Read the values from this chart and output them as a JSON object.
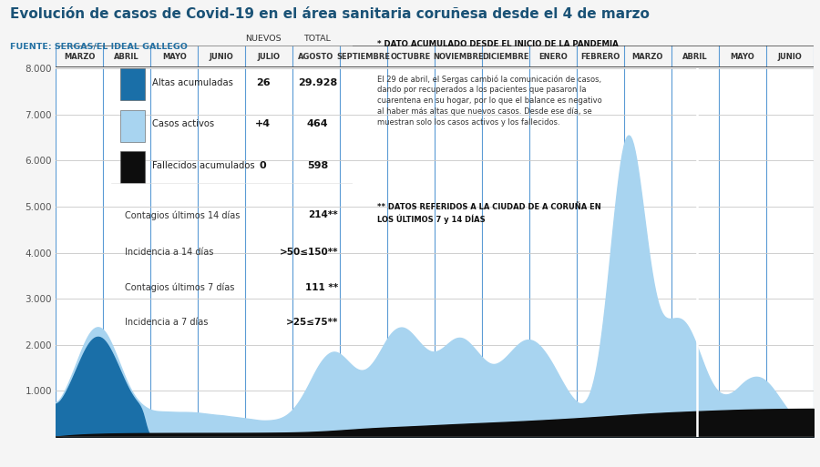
{
  "title": "Evolución de casos de Covid-19 en el área sanitaria coruñesa desde el 4 de marzo",
  "source": "FUENTE: SERGAS/EL IDEAL GALLEGO",
  "title_color": "#1a5276",
  "source_color": "#2471a3",
  "bg_color": "#f5f5f5",
  "plot_bg_color": "#ffffff",
  "grid_color": "#c8c8c8",
  "months": [
    "MARZO",
    "ABRIL",
    "MAYO",
    "JUNIO",
    "JULIO",
    "AGOSTO",
    "SEPTIEMBRE",
    "OCTUBRE",
    "NOVIEMBRE",
    "DICIEMBRE",
    "ENERO",
    "FEBRERO",
    "MARZO",
    "ABRIL",
    "MAYO",
    "JUNIO"
  ],
  "ylim": [
    0,
    8000
  ],
  "yticks": [
    1000,
    2000,
    3000,
    4000,
    5000,
    6000,
    7000,
    8000
  ],
  "color_altas": "#1a6fa8",
  "color_activos": "#a8d4f0",
  "color_fallecidos": "#0d0d0d",
  "legend_items": [
    {
      "label": "Altas acumuladas",
      "color": "#1a6fa8",
      "nuevos": "26",
      "total": "29.928"
    },
    {
      "label": "Casos activos",
      "color": "#a8d4f0",
      "nuevos": "+4",
      "total": "464"
    },
    {
      "label": "Fallecidos acumulados",
      "color": "#0d0d0d",
      "nuevos": "0",
      "total": "598"
    }
  ],
  "legend_extra": [
    {
      "label": "Contagios últimos 14 días",
      "value": "214**"
    },
    {
      "label": "Incidencia a 14 días",
      "value": ">50≤150**"
    },
    {
      "label": "Contagios últimos 7 días",
      "value": "111 **"
    },
    {
      "label": "Incidencia a 7 días",
      "value": ">25≤75**"
    }
  ],
  "note1": "* DATO ACUMULADO DESDE EL INICIO DE LA PANDEMIA",
  "note2": "El 29 de abril, el Sergas cambió la comunicación de casos,\ndando por recuperados a los pacientes que pasaron la\ncuarentena en su hogar, por lo que el balance es negativo\nal haber más altas que nuevos casos. Desde ese día, se\nmuestran solo los casos activos y los fallecidos.",
  "note3": "** DATOS REFERIDOS A LA CIUDAD DE A CORUÑA EN\nLOS ÚLTIMOS 7 y 14 DÍAS"
}
